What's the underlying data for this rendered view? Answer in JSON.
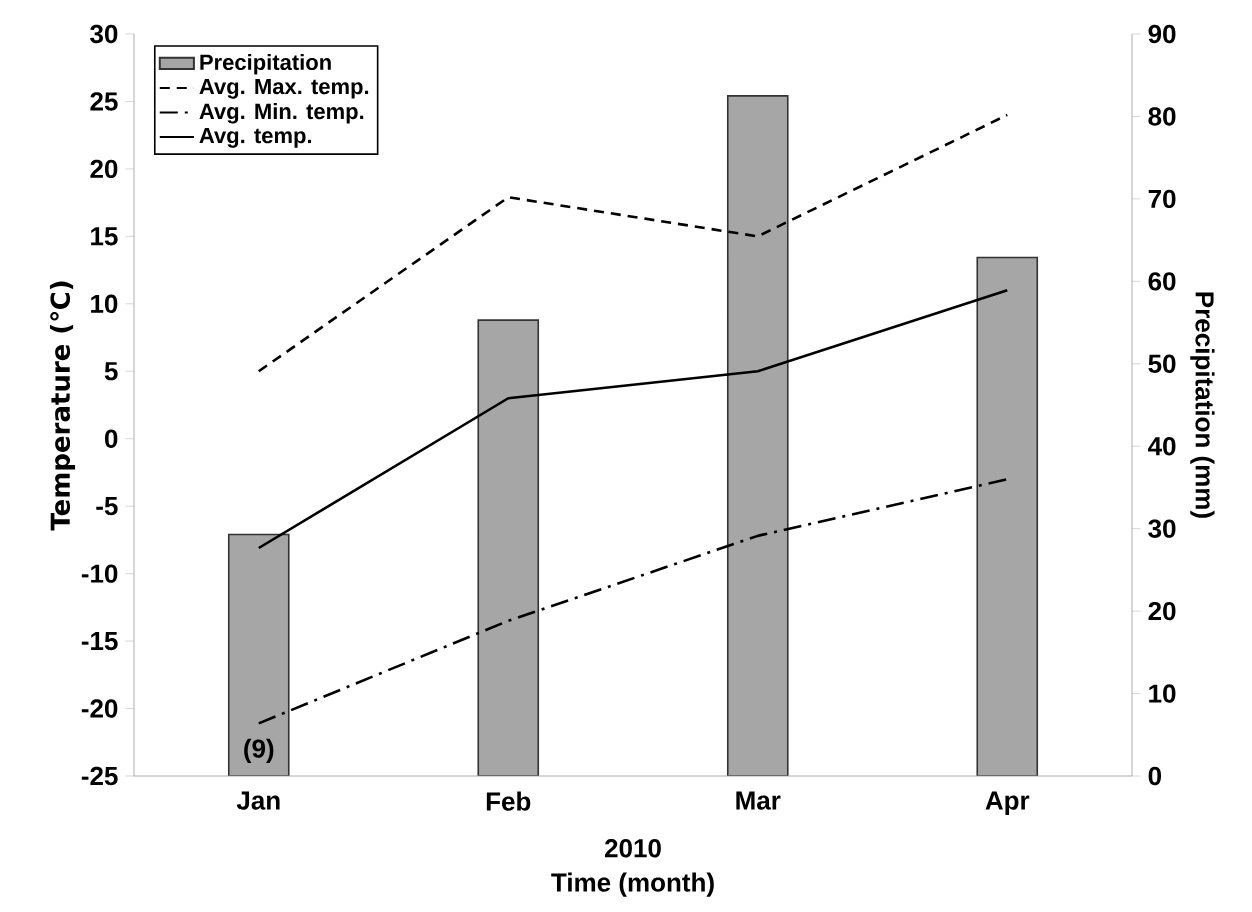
{
  "chart_data": {
    "type": "bar",
    "categories": [
      "Jan",
      "Feb",
      "Mar",
      "Apr"
    ],
    "xlabel": "Time (month)",
    "ylabel": "Temperature (℃)",
    "y2label": "Precipitation (mm)",
    "ylim": [
      -25,
      30
    ],
    "yticks": [
      -25,
      -20,
      -15,
      -10,
      -5,
      0,
      5,
      10,
      15,
      20,
      25,
      30
    ],
    "y2lim": [
      0,
      90
    ],
    "y2ticks": [
      0,
      10,
      20,
      30,
      40,
      50,
      60,
      70,
      80,
      90
    ],
    "legend": "top left",
    "series": [
      {
        "name": "Precipitation",
        "axis": "y2",
        "color": "#a6a6a6",
        "values": [
          29.3,
          55.3,
          82.5,
          62.9
        ]
      },
      {
        "name": "Avg. Max. temp.",
        "type": "line",
        "color": "#000000",
        "line_style": "dashed",
        "values": [
          5,
          17.9,
          15,
          24
        ]
      },
      {
        "name": "Avg. Min. temp.",
        "type": "line",
        "color": "#000000",
        "line_style": "dashdot",
        "values": [
          -21.1,
          -13.5,
          -7.2,
          -3
        ]
      },
      {
        "name": "Avg. temp.",
        "type": "line",
        "color": "#000000",
        "line_style": "solid",
        "values": [
          -8.1,
          3,
          5,
          11
        ]
      }
    ],
    "annotations": [
      "2010",
      "(9)"
    ]
  }
}
